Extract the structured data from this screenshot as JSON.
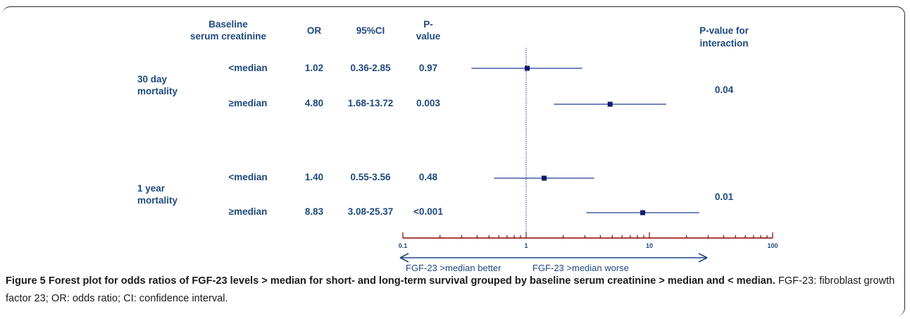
{
  "header": {
    "baseline_line1": "Baseline",
    "baseline_line2": "serum creatinine",
    "or": "OR",
    "ci": "95%CI",
    "p_line1": "P-",
    "p_line2": "value",
    "interaction_line1": "P-value for",
    "interaction_line2": "interaction"
  },
  "groups": [
    {
      "label_line1": "30 day",
      "label_line2": "mortality",
      "p_interaction": "0.04"
    },
    {
      "label_line1": "1 year",
      "label_line2": "mortality",
      "p_interaction": "0.01"
    }
  ],
  "rows": [
    {
      "subgroup": "<median",
      "or": "1.02",
      "ci": "0.36-2.85",
      "p": "0.97"
    },
    {
      "subgroup": "≥median",
      "or": "4.80",
      "ci": "1.68-13.72",
      "p": "0.003"
    },
    {
      "subgroup": "<median",
      "or": "1.40",
      "ci": "0.55-3.56",
      "p": "0.48"
    },
    {
      "subgroup": "≥median",
      "or": "8.83",
      "ci": "3.08-25.37",
      "p": "<0.001"
    }
  ],
  "chart_data": {
    "type": "scatter",
    "scale": "log",
    "xlim": [
      0.1,
      100
    ],
    "x_tick_labels": [
      "0.1",
      "1",
      "10",
      "100"
    ],
    "reference_line": 1,
    "points": [
      {
        "group": "30 day mortality",
        "subgroup": "<median",
        "or": 1.02,
        "lo": 0.36,
        "hi": 2.85
      },
      {
        "group": "30 day mortality",
        "subgroup": "≥median",
        "or": 4.8,
        "lo": 1.68,
        "hi": 13.72
      },
      {
        "group": "1 year mortality",
        "subgroup": "<median",
        "or": 1.4,
        "lo": 0.55,
        "hi": 3.56
      },
      {
        "group": "1 year mortality",
        "subgroup": "≥median",
        "or": 8.83,
        "lo": 3.08,
        "hi": 25.37
      }
    ],
    "arrow_left_label": "FGF-23 >median better",
    "arrow_right_label": "FGF-23 >median worse",
    "colors": {
      "series": "#1f3a93",
      "marker": "#0d1a6b",
      "axis": "#8b0000",
      "reference": "#1f3a93"
    }
  },
  "caption": {
    "label": "Figure 5",
    "title": "Forest plot for odds ratios of FGF-23 levels > median for short- and long-term survival grouped by baseline serum creatinine > median and < median.",
    "text": "FGF-23: fibroblast growth factor 23; OR: odds ratio; CI: confidence interval."
  }
}
